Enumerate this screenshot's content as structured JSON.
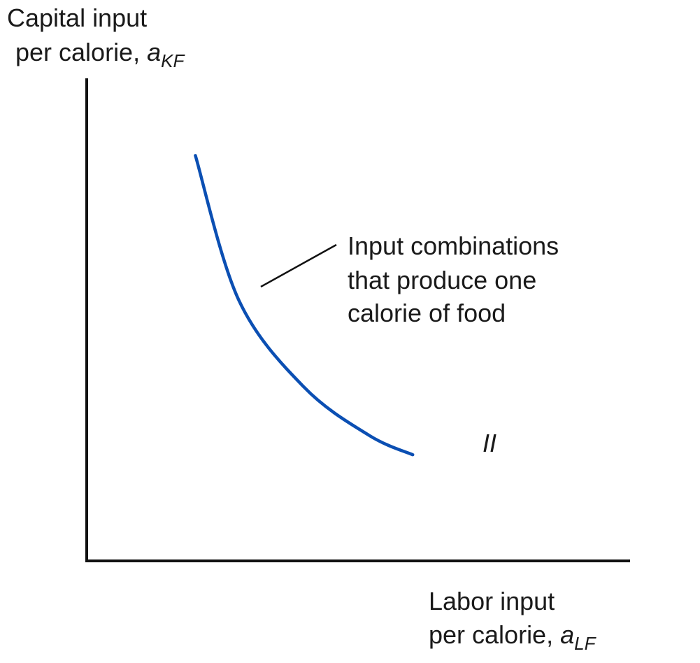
{
  "chart_data": {
    "type": "line",
    "title": "",
    "ylabel": {
      "line1": "Capital input",
      "line2_prefix": "per calorie, ",
      "var": "a",
      "sub": "KF"
    },
    "xlabel": {
      "line1": "Labor input",
      "line2_prefix": "per calorie, ",
      "var": "a",
      "sub": "LF"
    },
    "series": [
      {
        "name": "II",
        "color": "#0b4fb3",
        "points": [
          [
            0.2,
            0.84
          ],
          [
            0.28,
            0.54
          ],
          [
            0.4,
            0.36
          ],
          [
            0.52,
            0.26
          ],
          [
            0.6,
            0.22
          ]
        ]
      }
    ],
    "annotation": {
      "lines": [
        "Input combinations",
        "that produce one",
        "calorie of food"
      ]
    },
    "axes": {
      "x_ticks": false,
      "y_ticks": false,
      "grid": false,
      "axis_color": "#111111"
    }
  }
}
